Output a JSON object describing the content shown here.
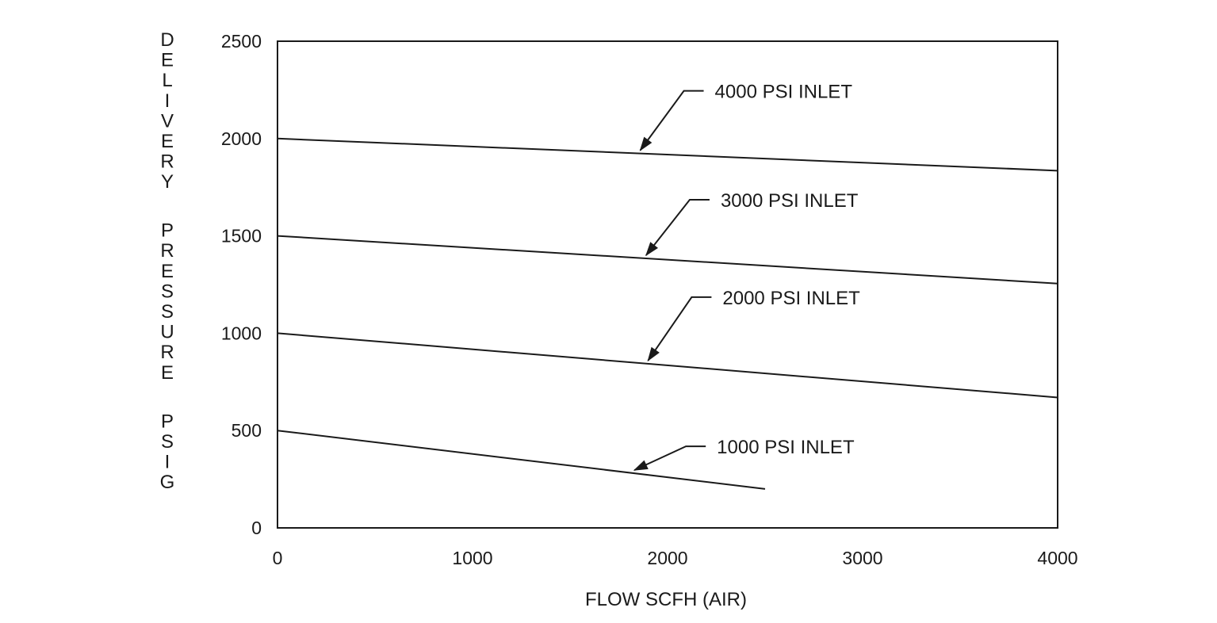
{
  "chart_data": {
    "type": "line",
    "title": "",
    "xlabel": "FLOW SCFH (AIR)",
    "ylabel": "DELIVERY PRESSURE PSIG",
    "xlim": [
      0,
      4000
    ],
    "ylim": [
      0,
      2500
    ],
    "xticks": [
      0,
      1000,
      2000,
      3000,
      4000
    ],
    "yticks": [
      0,
      500,
      1000,
      1500,
      2000,
      2500
    ],
    "xtick_labels": [
      "0",
      "1000",
      "2000",
      "3000",
      "4000"
    ],
    "ytick_labels": [
      "0",
      "500",
      "1000",
      "1500",
      "2000",
      "2500"
    ],
    "grid": false,
    "legend": "none",
    "series": [
      {
        "name": "4000 PSI INLET",
        "x": [
          0,
          4000
        ],
        "y": [
          2000,
          1835
        ],
        "label_at_x": 1860
      },
      {
        "name": "3000 PSI INLET",
        "x": [
          0,
          4000
        ],
        "y": [
          1500,
          1255
        ],
        "label_at_x": 1890
      },
      {
        "name": "2000 PSI INLET",
        "x": [
          0,
          4000
        ],
        "y": [
          1000,
          670
        ],
        "label_at_x": 1900
      },
      {
        "name": "1000 PSI INLET",
        "x": [
          0,
          2500
        ],
        "y": [
          500,
          200
        ],
        "label_at_x": 1830
      }
    ],
    "line_color": "#1a1a1a"
  }
}
